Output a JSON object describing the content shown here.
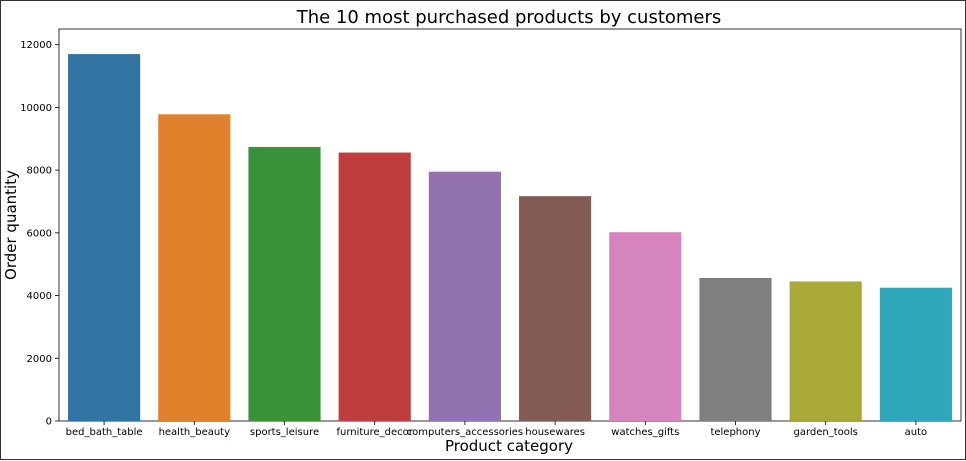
{
  "chart_data": {
    "type": "bar",
    "title": "The 10 most purchased products by customers",
    "xlabel": "Product category",
    "ylabel": "Order quantity",
    "categories": [
      "bed_bath_table",
      "health_beauty",
      "sports_leisure",
      "furniture_decor",
      "computers_accessories",
      "housewares",
      "watches_gifts",
      "telephony",
      "garden_tools",
      "auto"
    ],
    "values": [
      11700,
      9780,
      8740,
      8560,
      7950,
      7170,
      6020,
      4560,
      4450,
      4250
    ],
    "colors": [
      "#3274a1",
      "#e1812c",
      "#3a923a",
      "#c03d3e",
      "#9372b2",
      "#845b53",
      "#d684bd",
      "#7f7f7f",
      "#a9aa35",
      "#2ea8b8"
    ],
    "ylim": [
      0,
      12500
    ],
    "yticks": [
      0,
      2000,
      4000,
      6000,
      8000,
      10000,
      12000
    ],
    "grid": false,
    "legend": "none"
  }
}
